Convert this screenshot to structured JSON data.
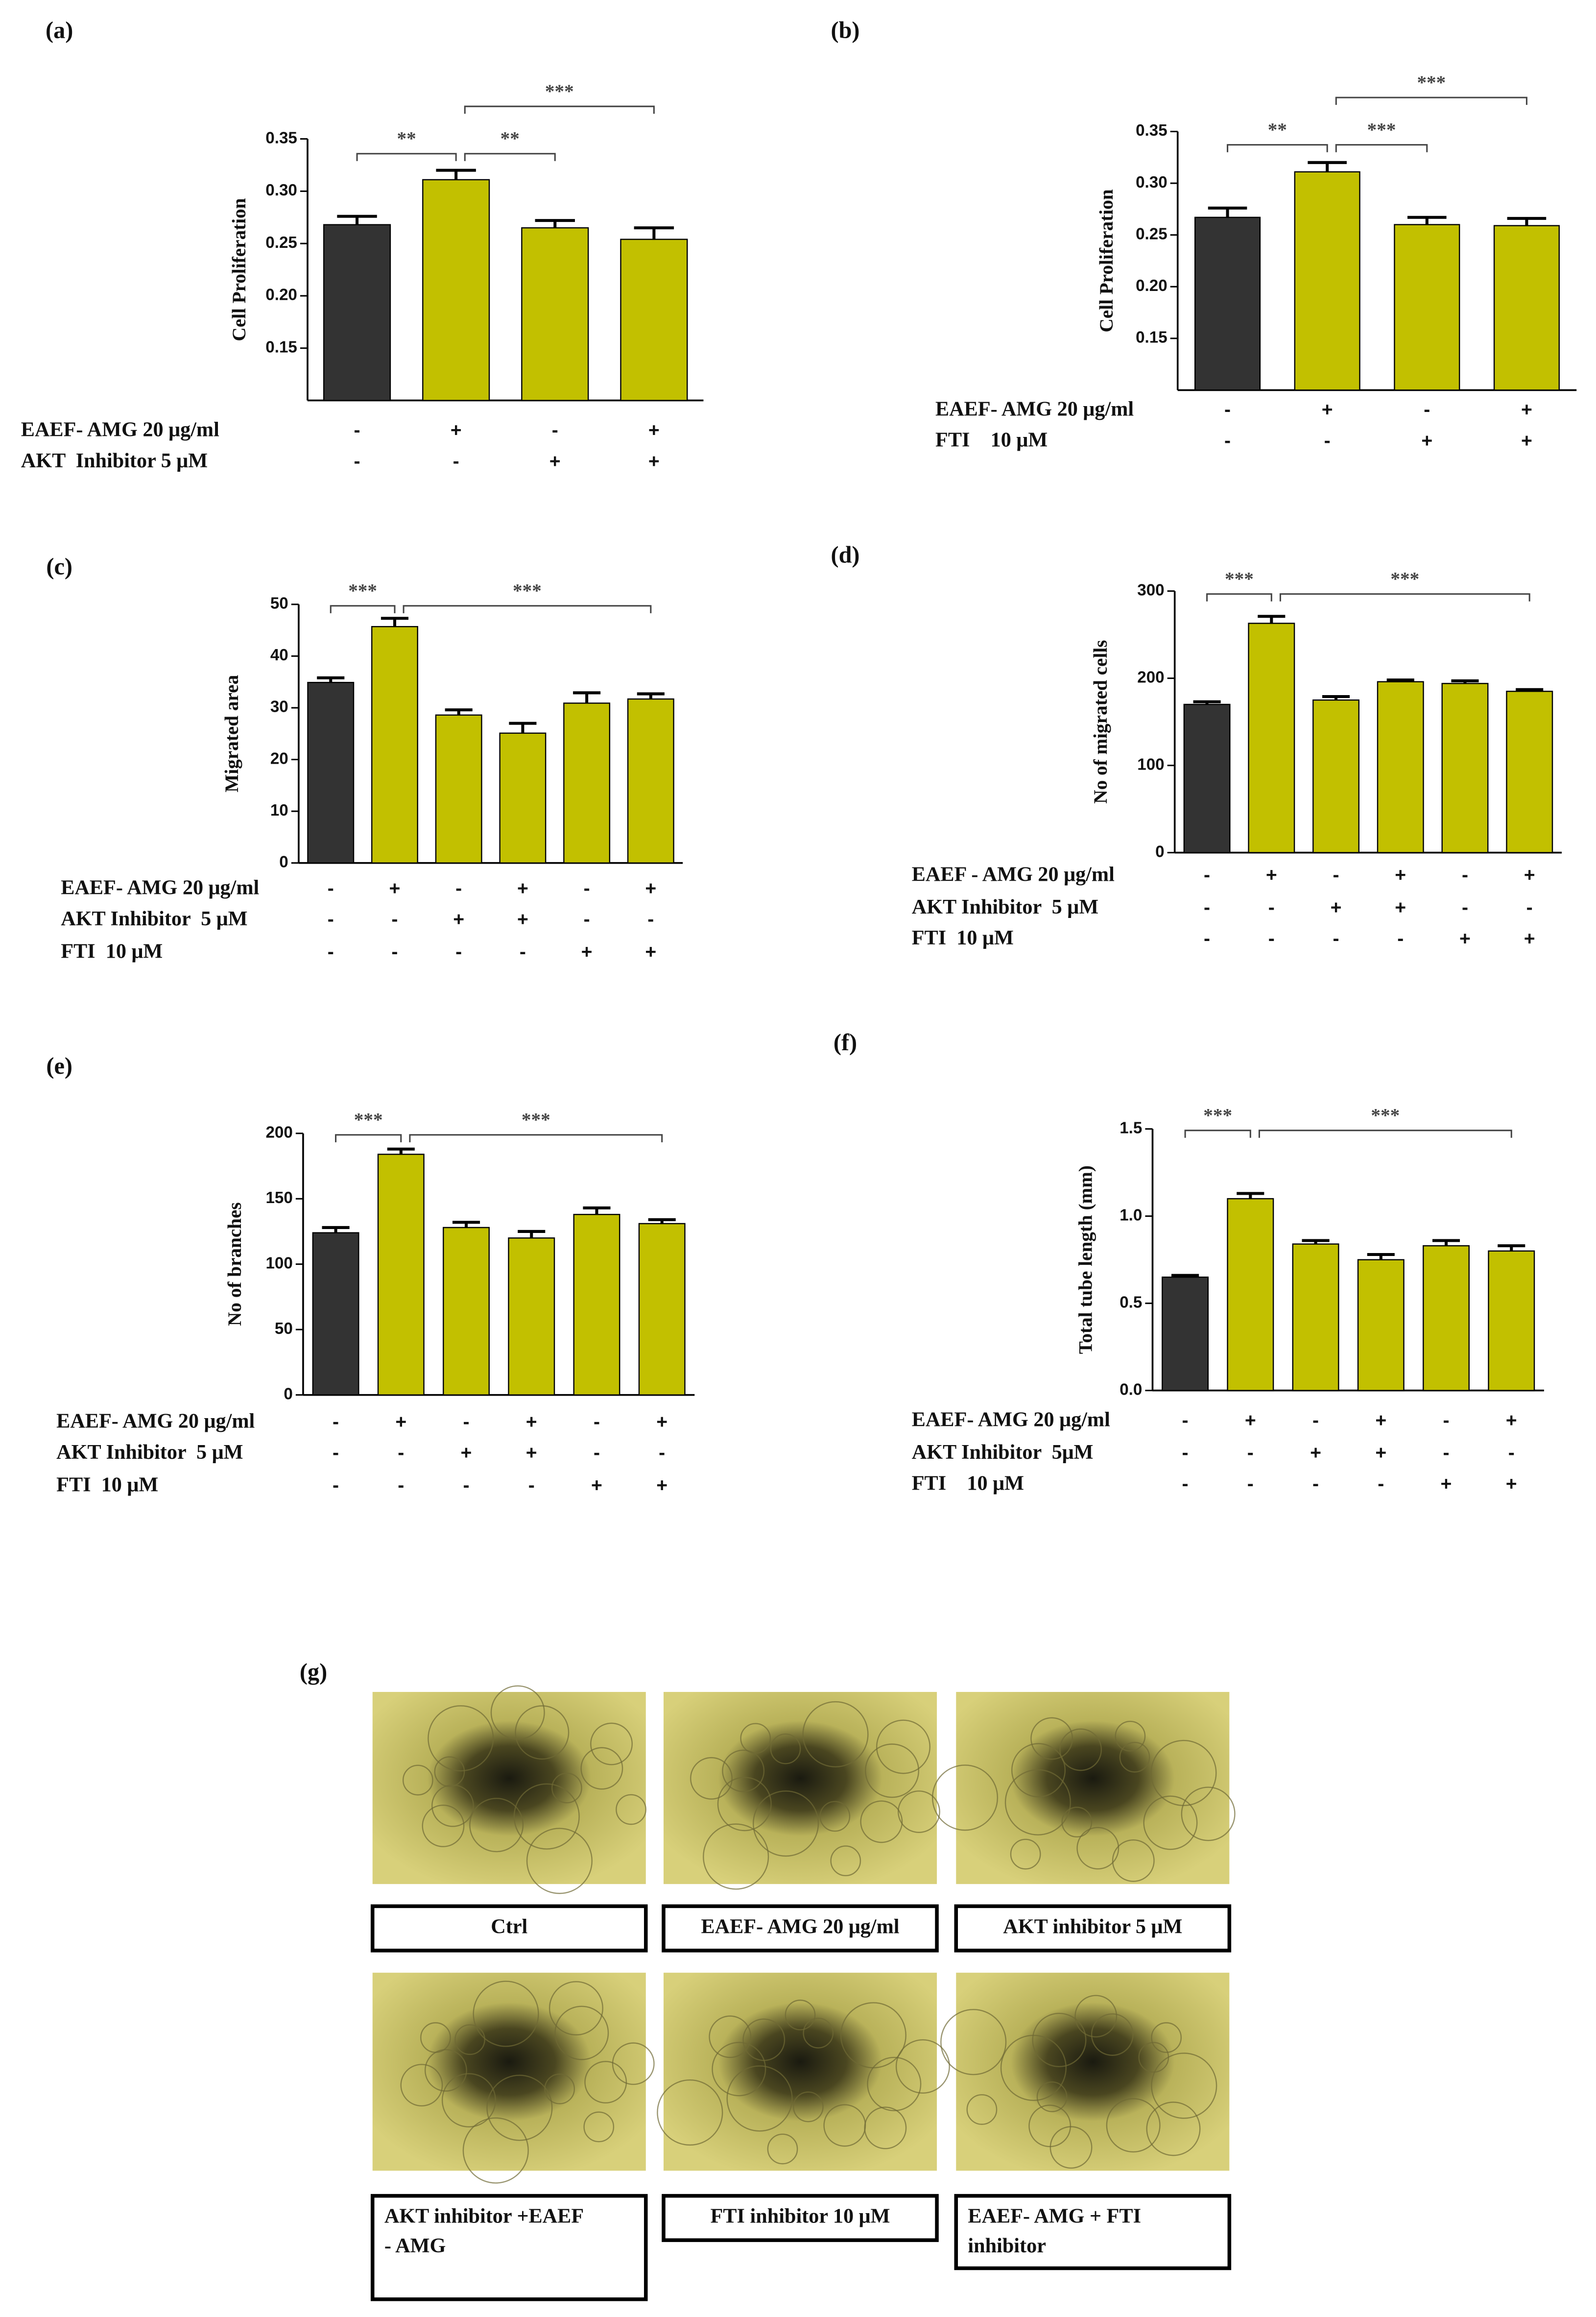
{
  "chart_data": [
    {
      "type": "bar",
      "label": "(a)",
      "y_label": "Cell Proliferation",
      "ylim": [
        0.1,
        0.35
      ],
      "yticks": [
        0.15,
        {
          "value": 0.2,
          "label": "0.20"
        },
        0.25,
        {
          "value": 0.3,
          "label": "0.30"
        },
        0.35
      ],
      "values": [
        0.268,
        0.311,
        0.265,
        0.254
      ],
      "errors": [
        0.008,
        0.009,
        0.007,
        0.011
      ],
      "colors": [
        "#333333",
        "#c2c000",
        "#c2c000",
        "#c2c000"
      ],
      "conditions": [
        {
          "name": "EAEF- AMG 20 μg/ml",
          "signs": [
            "-",
            "+",
            "-",
            "+"
          ]
        },
        {
          "name": "AKT  Inhibitor 5 μM",
          "signs": [
            "-",
            "-",
            "+",
            "+"
          ]
        }
      ],
      "annotations": [
        {
          "text": "**",
          "from": 0,
          "to": 1
        },
        {
          "text": "**",
          "from": 1,
          "to": 2
        },
        {
          "text": "***",
          "from": 1,
          "to": 3
        }
      ]
    },
    {
      "type": "bar",
      "label": "(b)",
      "y_label": "Cell Proliferation",
      "ylim": [
        0.1,
        0.35
      ],
      "yticks": [
        0.15,
        {
          "value": 0.2,
          "label": "0.20"
        },
        0.25,
        {
          "value": 0.3,
          "label": "0.30"
        },
        0.35
      ],
      "values": [
        0.267,
        0.311,
        0.26,
        0.259
      ],
      "errors": [
        0.009,
        0.009,
        0.007,
        0.007
      ],
      "colors": [
        "#333333",
        "#c2c000",
        "#c2c000",
        "#c2c000"
      ],
      "conditions": [
        {
          "name": "EAEF- AMG 20 μg/ml",
          "signs": [
            "-",
            "+",
            "-",
            "+"
          ]
        },
        {
          "name": "FTI    10 μM",
          "signs": [
            "-",
            "-",
            "+",
            "+"
          ]
        }
      ],
      "annotations": [
        {
          "text": "**",
          "from": 0,
          "to": 1
        },
        {
          "text": "***",
          "from": 1,
          "to": 2
        },
        {
          "text": "***",
          "from": 1,
          "to": 3
        }
      ]
    },
    {
      "type": "bar",
      "label": "(c)",
      "y_label": "Migrated area",
      "ylim": [
        0,
        50
      ],
      "yticks": [
        0,
        10,
        20,
        30,
        40,
        50
      ],
      "values": [
        34.9,
        45.7,
        28.6,
        25.1,
        30.9,
        31.7
      ],
      "errors": [
        0.9,
        1.6,
        1.0,
        1.9,
        2.0,
        1.0
      ],
      "colors": [
        "#333333",
        "#c2c000",
        "#c2c000",
        "#c2c000",
        "#c2c000",
        "#c2c000"
      ],
      "conditions": [
        {
          "name": "EAEF- AMG 20 μg/ml",
          "signs": [
            "-",
            "+",
            "-",
            "+",
            "-",
            "+"
          ]
        },
        {
          "name": "AKT Inhibitor  5 μM",
          "signs": [
            "-",
            "-",
            "+",
            "+",
            "-",
            "-"
          ]
        },
        {
          "name": "FTI  10 μM",
          "signs": [
            "-",
            "-",
            "-",
            "-",
            "+",
            "+"
          ]
        }
      ],
      "annotations": [
        {
          "text": "***",
          "from": 0,
          "to": 1
        },
        {
          "text": "***",
          "from": 1,
          "to": 5
        }
      ]
    },
    {
      "type": "bar",
      "label": "(d)",
      "y_label": "No of migrated cells",
      "ylim": [
        0,
        300
      ],
      "yticks": [
        0,
        100,
        200,
        300
      ],
      "values": [
        170,
        263,
        175,
        196,
        194,
        185
      ],
      "errors": [
        3,
        8,
        4,
        2,
        3,
        2
      ],
      "colors": [
        "#333333",
        "#c2c000",
        "#c2c000",
        "#c2c000",
        "#c2c000",
        "#c2c000"
      ],
      "conditions": [
        {
          "name": "EAEF - AMG 20 μg/ml",
          "signs": [
            "-",
            "+",
            "-",
            "+",
            "-",
            "+"
          ]
        },
        {
          "name": "AKT Inhibitor  5 μM",
          "signs": [
            "-",
            "-",
            "+",
            "+",
            "-",
            "-"
          ]
        },
        {
          "name": "FTI  10 μM",
          "signs": [
            "-",
            "-",
            "-",
            "-",
            "+",
            "+"
          ]
        }
      ],
      "annotations": [
        {
          "text": "***",
          "from": 0,
          "to": 1
        },
        {
          "text": "***",
          "from": 1,
          "to": 5
        }
      ]
    },
    {
      "type": "bar",
      "label": "(e)",
      "y_label": "No of branches",
      "ylim": [
        0,
        200
      ],
      "yticks": [
        0,
        50,
        100,
        150,
        200
      ],
      "values": [
        124,
        184,
        128,
        120,
        138,
        131
      ],
      "errors": [
        4,
        4,
        4,
        5,
        5,
        3
      ],
      "colors": [
        "#333333",
        "#c2c000",
        "#c2c000",
        "#c2c000",
        "#c2c000",
        "#c2c000"
      ],
      "conditions": [
        {
          "name": "EAEF- AMG 20 μg/ml",
          "signs": [
            "-",
            "+",
            "-",
            "+",
            "-",
            "+"
          ]
        },
        {
          "name": "AKT Inhibitor  5 μM",
          "signs": [
            "-",
            "-",
            "+",
            "+",
            "-",
            "-"
          ]
        },
        {
          "name": "FTI  10 μM",
          "signs": [
            "-",
            "-",
            "-",
            "-",
            "+",
            "+"
          ]
        }
      ],
      "annotations": [
        {
          "text": "***",
          "from": 0,
          "to": 1
        },
        {
          "text": "***",
          "from": 1,
          "to": 5
        }
      ]
    },
    {
      "type": "bar",
      "label": "(f)",
      "y_label": "Total tube length (mm)",
      "ylim": [
        0,
        1.5
      ],
      "yticks": [
        {
          "value": 0,
          "label": "0.0"
        },
        0.5,
        {
          "value": 1,
          "label": "1.0"
        },
        1.5
      ],
      "values": [
        0.65,
        1.1,
        0.84,
        0.75,
        0.83,
        0.8
      ],
      "errors": [
        0.01,
        0.03,
        0.02,
        0.03,
        0.03,
        0.03
      ],
      "colors": [
        "#333333",
        "#c2c000",
        "#c2c000",
        "#c2c000",
        "#c2c000",
        "#c2c000"
      ],
      "conditions": [
        {
          "name": "EAEF- AMG 20 μg/ml",
          "signs": [
            "-",
            "+",
            "-",
            "+",
            "-",
            "+"
          ]
        },
        {
          "name": "AKT Inhibitor  5μM",
          "signs": [
            "-",
            "-",
            "+",
            "+",
            "-",
            "-"
          ]
        },
        {
          "name": "FTI    10 μM",
          "signs": [
            "-",
            "-",
            "-",
            "-",
            "+",
            "+"
          ]
        }
      ],
      "annotations": [
        {
          "text": "***",
          "from": 0,
          "to": 1
        },
        {
          "text": "***",
          "from": 1,
          "to": 5
        }
      ]
    }
  ],
  "panel_g": {
    "label": "(g)",
    "captions": [
      [
        "Ctrl"
      ],
      [
        "EAEF- AMG 20 μg/ml"
      ],
      [
        "AKT inhibitor 5 μM"
      ],
      [
        "AKT inhibitor +EAEF",
        "- AMG"
      ],
      [
        "FTI inhibitor 10 μM"
      ],
      [
        "EAEF- AMG + FTI",
        "inhibitor"
      ]
    ]
  }
}
